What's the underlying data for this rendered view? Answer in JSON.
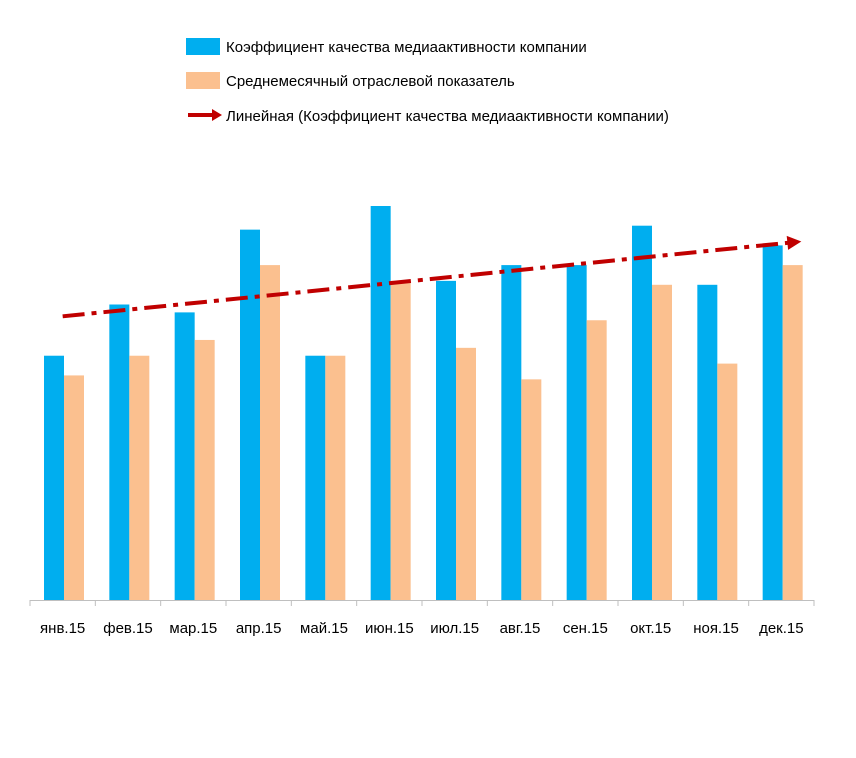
{
  "chart_data": {
    "type": "bar",
    "title": "",
    "xlabel": "",
    "ylabel": "",
    "ylim": [
      0,
      100
    ],
    "grid": false,
    "legend_position": "top",
    "categories": [
      "янв.15",
      "фев.15",
      "мар.15",
      "апр.15",
      "май.15",
      "июн.15",
      "июл.15",
      "авг.15",
      "сен.15",
      "окт.15",
      "ноя.15",
      "дек.15"
    ],
    "series": [
      {
        "name": "Коэффициент качества медиаактивности компании",
        "kind": "bar",
        "color": "#00AEEF",
        "values": [
          62,
          75,
          73,
          94,
          62,
          100,
          81,
          85,
          85,
          95,
          80,
          90
        ]
      },
      {
        "name": "Среднемесячный отраслевой показатель",
        "kind": "bar",
        "color": "#FBC08F",
        "values": [
          57,
          62,
          66,
          85,
          62,
          81,
          64,
          56,
          71,
          80,
          60,
          85
        ]
      }
    ],
    "trendline": {
      "name": "Линейная (Коэффициент качества медиаактивности компании)",
      "color": "#C00000",
      "style": "dash-dot",
      "start": 72,
      "end": 91
    }
  }
}
